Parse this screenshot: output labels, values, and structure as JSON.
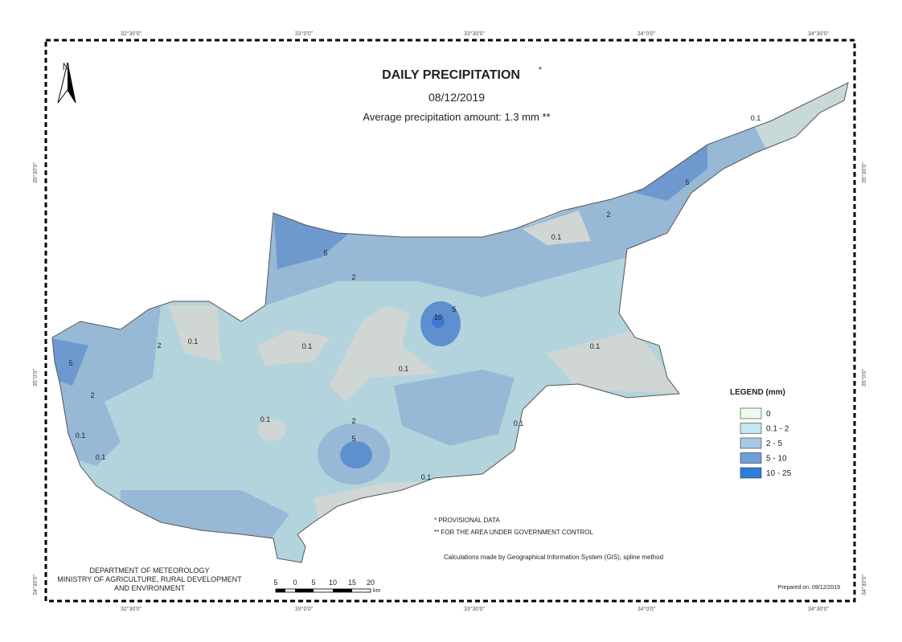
{
  "map": {
    "title": "DAILY PRECIPITATION",
    "title_mark": "*",
    "date": "08/12/2019",
    "average": "Average precipitation amount: 1.3 mm **",
    "north": "N",
    "lon_labels": [
      "32°30'0\"",
      "33°0'0\"",
      "33°30'0\"",
      "34°0'0\"",
      "34°30'0\""
    ],
    "lat_labels": [
      "35°30'0\"",
      "35°0'0\"",
      "34°30'0\""
    ],
    "legend": {
      "title": "LEGEND (mm)",
      "items": [
        {
          "label": "0",
          "color": "#eefaee"
        },
        {
          "label": "0.1 - 2",
          "color": "#c4e6ee"
        },
        {
          "label": "2 - 5",
          "color": "#a6c9e6"
        },
        {
          "label": "5 - 10",
          "color": "#6e9fdb"
        },
        {
          "label": "10 - 25",
          "color": "#2f7fd9"
        }
      ]
    },
    "contour_labels": [
      "5",
      "2",
      "0.1",
      "0.1",
      "0.1",
      "10",
      "5",
      "0.1",
      "2",
      "5",
      "0.1",
      "0.1",
      "2",
      "5",
      "2",
      "0.1",
      "0.1",
      "0.1",
      "2",
      "5",
      "0.1",
      "0.1"
    ],
    "notes": [
      "* PROVISIONAL DATA",
      "** FOR THE AREA UNDER GOVERNMENT CONTROL"
    ],
    "method": "Calculations made by Geographical Information System (GIS), spline method",
    "department": [
      "DEPARTMENT OF METEOROLOGY",
      "MINISTRY OF AGRICULTURE, RURAL DEVELOPMENT",
      "AND ENVIRONMENT"
    ],
    "scale_labels": [
      "5",
      "0",
      "5",
      "10",
      "15",
      "20"
    ],
    "scale_unit": "km",
    "prepared": "Prepared on: 09/12/2019"
  }
}
